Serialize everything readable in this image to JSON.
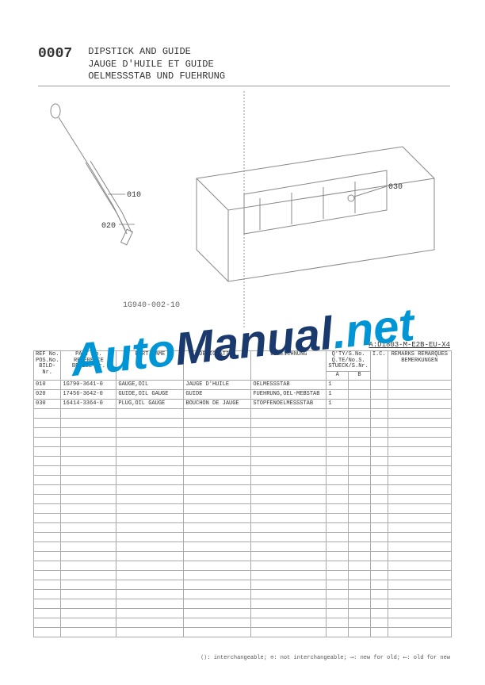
{
  "header": {
    "section_number": "0007",
    "title_en": "DIPSTICK AND GUIDE",
    "title_fr": "JAUGE D'HUILE ET GUIDE",
    "title_de": "OELMESSSTAB UND FUEHRUNG"
  },
  "diagram": {
    "code": "1G940-002-10",
    "callouts": [
      "010",
      "020",
      "030"
    ]
  },
  "model_code": "A:D1803-M-E2B-EU-X4",
  "table": {
    "headers": {
      "ref": "REF No.\nPOS.No.\nBILD-Nr.",
      "part": "PART No.\nREFERENCE\nBESELL-Nr.",
      "name": "PART NAME",
      "desig": "DESIGNATION",
      "bez": "BEZEICHNUNG",
      "qty": "Q'TY/S.No.\nQ.TE/No.S.\nSTUECK/S.Nr.",
      "qa": "A",
      "qb": "B",
      "ic": "I.C.",
      "rem": "REMARKS\nREMARQUES\nBEMERKUNGEN"
    },
    "rows": [
      {
        "ref": "010",
        "part": "1G790-3641-0",
        "name": "GAUGE,OIL",
        "desig": "JAUGE D'HUILE",
        "bez": "OELMESSSTAB",
        "qa": "1",
        "qb": "",
        "ic": "",
        "rem": ""
      },
      {
        "ref": "020",
        "part": "17456-3642-0",
        "name": "GUIDE,OIL GAUGE",
        "desig": "GUIDE",
        "bez": "FUEHRUNG,OEL-MEBSTAB",
        "qa": "1",
        "qb": "",
        "ic": "",
        "rem": ""
      },
      {
        "ref": "030",
        "part": "16414-3364-0",
        "name": "PLUG,OIL GAUGE",
        "desig": "BOUCHON DE JAUGE",
        "bez": "STOPFENOELMESSSTAB",
        "qa": "1",
        "qb": "",
        "ic": "",
        "rem": ""
      }
    ],
    "empty_rows": 24
  },
  "footer": {
    "legend": "⟨⟩: interchangeable; ⊖: not interchangeable; ⟶: new for old; ⟵: old for new"
  },
  "watermark": {
    "part1": "Auto",
    "part2": "Manual",
    "part3": ".net"
  },
  "colors": {
    "line": "#888888",
    "text": "#333333",
    "wm_blue": "#0096d6",
    "wm_dark": "#1a3a6e"
  }
}
